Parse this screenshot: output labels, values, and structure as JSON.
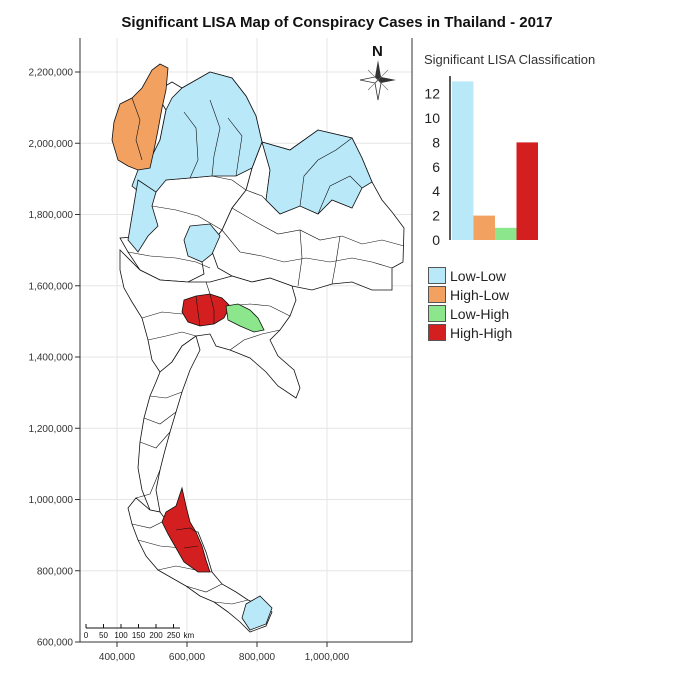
{
  "map": {
    "title": "Significant LISA Map of Conspiracy Cases in Thailand - 2017",
    "north_label": "N",
    "y_ticks": [
      {
        "label": "2,200,000",
        "value": 2200000
      },
      {
        "label": "2,000,000",
        "value": 2000000
      },
      {
        "label": "1,800,000",
        "value": 1800000
      },
      {
        "label": "1,600,000",
        "value": 1600000
      },
      {
        "label": "1,400,000",
        "value": 1400000
      },
      {
        "label": "1,200,000",
        "value": 1200000
      },
      {
        "label": "1,000,000",
        "value": 1000000
      },
      {
        "label": "800,000",
        "value": 800000
      },
      {
        "label": "600,000",
        "value": 600000
      }
    ],
    "x_ticks": [
      {
        "label": "400,000",
        "value": 400000
      },
      {
        "label": "600,000",
        "value": 600000
      },
      {
        "label": "800,000",
        "value": 800000
      },
      {
        "label": "1,000,000",
        "value": 1000000
      }
    ],
    "scale_bar": {
      "labels": [
        "0",
        "50",
        "100",
        "150",
        "200",
        "250"
      ],
      "unit": "km"
    }
  },
  "legend": {
    "title": "Significant LISA Classification",
    "items": [
      {
        "label": "Low-Low",
        "color": "#b9e8f9"
      },
      {
        "label": "High-Low",
        "color": "#f2a160"
      },
      {
        "label": "Low-High",
        "color": "#8ce68c"
      },
      {
        "label": "High-High",
        "color": "#d31f1f"
      }
    ]
  },
  "chart_data": {
    "type": "bar",
    "title": "Significant LISA Classification",
    "categories": [
      "Low-Low",
      "High-Low",
      "Low-High",
      "High-High"
    ],
    "values": [
      13,
      2,
      1,
      8
    ],
    "colors": [
      "#b9e8f9",
      "#f2a160",
      "#8ce68c",
      "#d31f1f"
    ],
    "yticks": [
      "0",
      "2",
      "4",
      "6",
      "8",
      "10",
      "12"
    ],
    "ylim": [
      0,
      13
    ]
  },
  "colors": {
    "low_low": "#b9e8f9",
    "high_low": "#f2a160",
    "low_high": "#8ce68c",
    "high_high": "#d31f1f",
    "outline": "#111111"
  }
}
